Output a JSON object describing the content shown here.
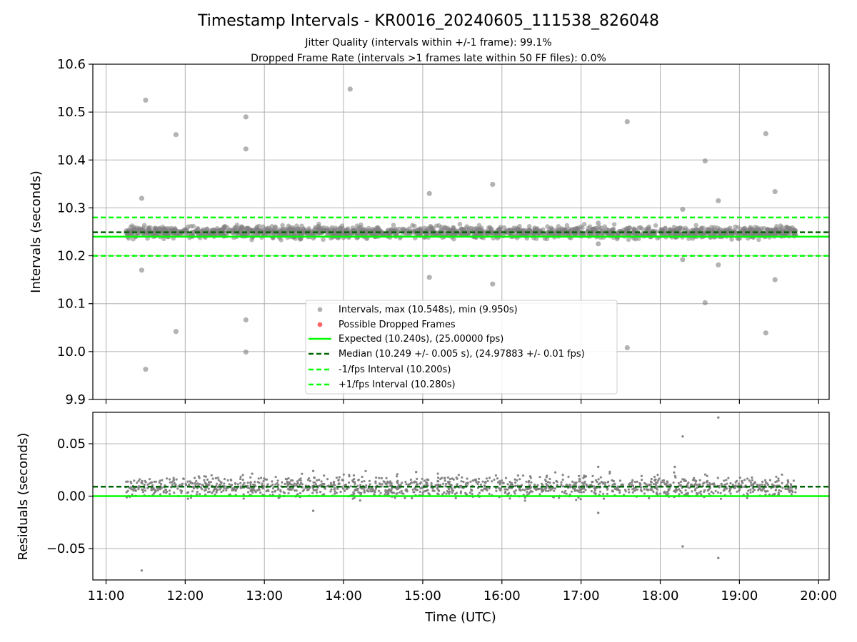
{
  "figure": {
    "title": "Timestamp Intervals - KR0016_20240605_111538_826048",
    "subtitle_line1": "Jitter Quality (intervals within +/-1 frame): 99.1%",
    "subtitle_line2": "Dropped Frame Rate (intervals >1 frames late within 50 FF files): 0.0%"
  },
  "colors": {
    "points": "#808080",
    "dropped": "#ff0000",
    "expected": "#00ff00",
    "median": "#006400",
    "interval": "#00ff00",
    "grid": "#b0b0b0"
  },
  "chart_data": [
    {
      "type": "scatter",
      "title": "Timestamp Intervals - KR0016_20240605_111538_826048",
      "xlabel": "",
      "ylabel": "Intervals (seconds)",
      "xlim": [
        "10:50",
        "20:08"
      ],
      "ylim": [
        9.9,
        10.6
      ],
      "x_ticks": [
        "11:00",
        "12:00",
        "13:00",
        "14:00",
        "15:00",
        "16:00",
        "17:00",
        "18:00",
        "19:00",
        "20:00"
      ],
      "y_ticks": [
        "9.9",
        "10.0",
        "10.1",
        "10.2",
        "10.3",
        "10.4",
        "10.5",
        "10.6"
      ],
      "y_tick_values": [
        9.9,
        10.0,
        10.1,
        10.2,
        10.3,
        10.4,
        10.5,
        10.6
      ],
      "grid": true,
      "legend_position": "lower center",
      "lines": [
        {
          "name": "Expected (10.240s), (25.00000 fps)",
          "y": 10.24,
          "style": "solid",
          "color": "#00ff00"
        },
        {
          "name": "Median (10.249 +/- 0.005 s), (24.97883 +/- 0.01 fps)",
          "y": 10.249,
          "style": "dashed",
          "color": "#006400"
        },
        {
          "name": "-1/fps Interval (10.200s)",
          "y": 10.2,
          "style": "dashed",
          "color": "#00ff00"
        },
        {
          "name": "+1/fps Interval (10.280s)",
          "y": 10.28,
          "style": "dashed",
          "color": "#00ff00"
        }
      ],
      "series": [
        {
          "name": "Intervals, max (10.548s), min (9.950s)",
          "color": "#808080"
        },
        {
          "name": "Possible Dropped Frames",
          "color": "#ff0000"
        }
      ],
      "dense_band": {
        "x_start": "11:15",
        "x_end": "19:43",
        "y_center": 10.249,
        "y_spread": 0.012
      },
      "outliers": [
        {
          "x": "11:27",
          "y": 10.32
        },
        {
          "x": "11:27",
          "y": 10.17
        },
        {
          "x": "11:30",
          "y": 10.525
        },
        {
          "x": "11:30",
          "y": 9.963
        },
        {
          "x": "11:53",
          "y": 10.453
        },
        {
          "x": "11:53",
          "y": 10.042
        },
        {
          "x": "12:46",
          "y": 10.49
        },
        {
          "x": "12:46",
          "y": 10.423
        },
        {
          "x": "12:46",
          "y": 10.066
        },
        {
          "x": "12:46",
          "y": 9.999
        },
        {
          "x": "14:05",
          "y": 10.548
        },
        {
          "x": "15:05",
          "y": 10.33
        },
        {
          "x": "15:05",
          "y": 10.155
        },
        {
          "x": "15:53",
          "y": 10.349
        },
        {
          "x": "15:53",
          "y": 10.141
        },
        {
          "x": "17:35",
          "y": 10.48
        },
        {
          "x": "17:35",
          "y": 10.008
        },
        {
          "x": "18:17",
          "y": 10.297
        },
        {
          "x": "18:17",
          "y": 10.192
        },
        {
          "x": "18:34",
          "y": 10.398
        },
        {
          "x": "18:34",
          "y": 10.102
        },
        {
          "x": "18:44",
          "y": 10.315
        },
        {
          "x": "18:44",
          "y": 10.181
        },
        {
          "x": "19:20",
          "y": 10.455
        },
        {
          "x": "19:20",
          "y": 10.039
        },
        {
          "x": "19:27",
          "y": 10.334
        },
        {
          "x": "19:27",
          "y": 10.15
        },
        {
          "x": "17:13",
          "y": 10.268
        },
        {
          "x": "17:13",
          "y": 10.225
        }
      ]
    },
    {
      "type": "scatter",
      "title": "",
      "xlabel": "Time (UTC)",
      "ylabel": "Residuals (seconds)",
      "xlim": [
        "10:50",
        "20:08"
      ],
      "ylim": [
        -0.08,
        0.08
      ],
      "x_ticks": [
        "11:00",
        "12:00",
        "13:00",
        "14:00",
        "15:00",
        "16:00",
        "17:00",
        "18:00",
        "19:00",
        "20:00"
      ],
      "y_ticks": [
        "−0.05",
        "0.00",
        "0.05"
      ],
      "y_tick_values": [
        -0.05,
        0.0,
        0.05
      ],
      "grid": true,
      "lines": [
        {
          "y": 0.0,
          "style": "solid",
          "color": "#00ff00"
        },
        {
          "y": 0.009,
          "style": "dashed",
          "color": "#006400"
        }
      ],
      "dense_band": {
        "x_start": "11:15",
        "x_end": "19:43",
        "y_center": 0.009,
        "y_spread": 0.01
      },
      "outliers": [
        {
          "x": "11:27",
          "y": -0.071
        },
        {
          "x": "18:17",
          "y": 0.057
        },
        {
          "x": "18:17",
          "y": -0.048
        },
        {
          "x": "18:44",
          "y": 0.075
        },
        {
          "x": "18:44",
          "y": -0.059
        },
        {
          "x": "17:13",
          "y": 0.028
        },
        {
          "x": "17:13",
          "y": -0.016
        },
        {
          "x": "13:37",
          "y": -0.014
        },
        {
          "x": "13:37",
          "y": 0.024
        },
        {
          "x": "14:55",
          "y": 0.023
        },
        {
          "x": "18:11",
          "y": 0.028
        }
      ]
    }
  ]
}
